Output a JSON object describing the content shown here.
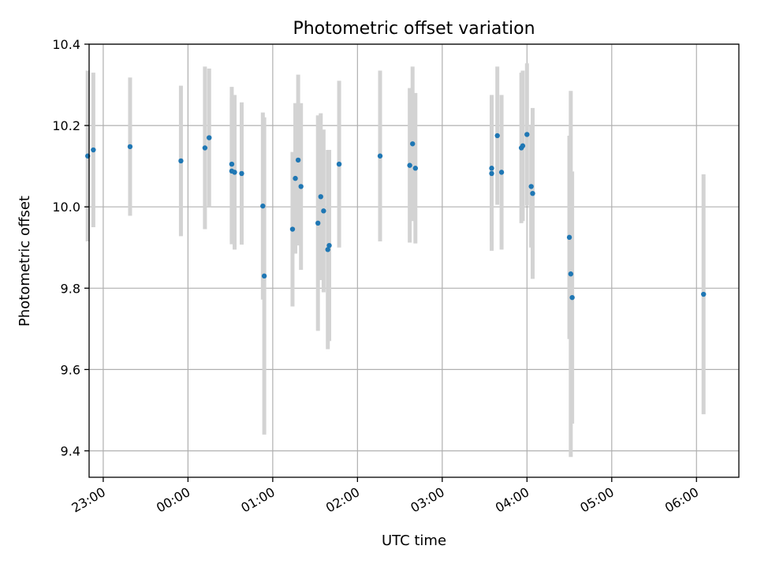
{
  "chart_data": {
    "type": "scatter",
    "title": "Photometric offset variation",
    "xlabel": "UTC time",
    "ylabel": "Photometric offset",
    "x_axis_type": "time",
    "xlim": [
      "22:50",
      "06:30"
    ],
    "ylim": [
      9.335,
      10.4
    ],
    "x_ticks": [
      "23:00",
      "00:00",
      "01:00",
      "02:00",
      "03:00",
      "04:00",
      "05:00",
      "06:00"
    ],
    "y_ticks": [
      9.4,
      9.6,
      9.8,
      10.0,
      10.2,
      10.4
    ],
    "y_tick_labels": [
      "9.4",
      "9.6",
      "9.8",
      "10.0",
      "10.2",
      "10.4"
    ],
    "x_tick_rotation_deg": 30,
    "grid": true,
    "legend": "none",
    "marker_color": "#1f77b4",
    "errorbar_color": "#d3d3d3",
    "points": [
      {
        "x": "22:49",
        "y": 10.125,
        "yerr": 0.21
      },
      {
        "x": "22:53",
        "y": 10.14,
        "yerr": 0.19
      },
      {
        "x": "23:19",
        "y": 10.148,
        "yerr": 0.17
      },
      {
        "x": "23:55",
        "y": 10.113,
        "yerr": 0.185
      },
      {
        "x": "00:12",
        "y": 10.145,
        "yerr": 0.2
      },
      {
        "x": "00:15",
        "y": 10.17,
        "yerr": 0.17
      },
      {
        "x": "00:31",
        "y": 10.088,
        "yerr": 0.18
      },
      {
        "x": "00:31",
        "y": 10.105,
        "yerr": 0.19
      },
      {
        "x": "00:33",
        "y": 10.085,
        "yerr": 0.19
      },
      {
        "x": "00:38",
        "y": 10.082,
        "yerr": 0.175
      },
      {
        "x": "00:53",
        "y": 10.002,
        "yerr": 0.23
      },
      {
        "x": "00:54",
        "y": 9.83,
        "yerr": 0.39
      },
      {
        "x": "01:14",
        "y": 9.945,
        "yerr": 0.19
      },
      {
        "x": "01:16",
        "y": 10.07,
        "yerr": 0.185
      },
      {
        "x": "01:18",
        "y": 10.115,
        "yerr": 0.21
      },
      {
        "x": "01:20",
        "y": 10.05,
        "yerr": 0.205
      },
      {
        "x": "01:32",
        "y": 9.96,
        "yerr": 0.265
      },
      {
        "x": "01:34",
        "y": 10.025,
        "yerr": 0.205
      },
      {
        "x": "01:36",
        "y": 9.99,
        "yerr": 0.2
      },
      {
        "x": "01:39",
        "y": 9.895,
        "yerr": 0.245
      },
      {
        "x": "01:40",
        "y": 9.905,
        "yerr": 0.235
      },
      {
        "x": "01:47",
        "y": 10.105,
        "yerr": 0.205
      },
      {
        "x": "02:16",
        "y": 10.125,
        "yerr": 0.21
      },
      {
        "x": "02:37",
        "y": 10.102,
        "yerr": 0.19
      },
      {
        "x": "02:39",
        "y": 10.155,
        "yerr": 0.19
      },
      {
        "x": "02:41",
        "y": 10.095,
        "yerr": 0.185
      },
      {
        "x": "03:35",
        "y": 10.095,
        "yerr": 0.18
      },
      {
        "x": "03:35",
        "y": 10.082,
        "yerr": 0.19
      },
      {
        "x": "03:39",
        "y": 10.175,
        "yerr": 0.17
      },
      {
        "x": "03:42",
        "y": 10.085,
        "yerr": 0.19
      },
      {
        "x": "03:56",
        "y": 10.145,
        "yerr": 0.185
      },
      {
        "x": "03:57",
        "y": 10.15,
        "yerr": 0.185
      },
      {
        "x": "04:00",
        "y": 10.178,
        "yerr": 0.175
      },
      {
        "x": "04:03",
        "y": 10.05,
        "yerr": 0.15
      },
      {
        "x": "04:04",
        "y": 10.033,
        "yerr": 0.21
      },
      {
        "x": "04:30",
        "y": 9.925,
        "yerr": 0.25
      },
      {
        "x": "04:31",
        "y": 9.835,
        "yerr": 0.45
      },
      {
        "x": "04:32",
        "y": 9.777,
        "yerr": 0.31
      },
      {
        "x": "06:05",
        "y": 9.785,
        "yerr": 0.295
      }
    ]
  }
}
